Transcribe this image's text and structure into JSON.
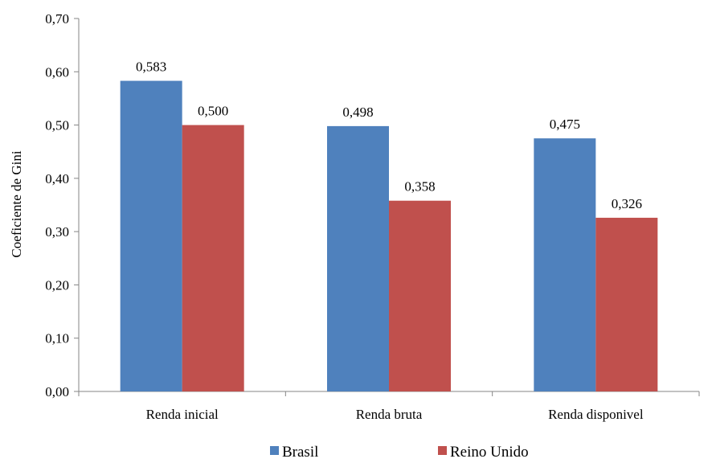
{
  "chart_data": {
    "type": "bar",
    "categories": [
      "Renda inicial",
      "Renda bruta",
      "Renda disponivel"
    ],
    "series": [
      {
        "name": "Brasil",
        "values": [
          0.583,
          0.498,
          0.475
        ],
        "labels": [
          "0,583",
          "0,498",
          "0,475"
        ],
        "color": "#4F81BD"
      },
      {
        "name": "Reino Unido",
        "values": [
          0.5,
          0.358,
          0.326
        ],
        "labels": [
          "0,500",
          "0,358",
          "0,326"
        ],
        "color": "#C0504D"
      }
    ],
    "ylabel": "Coeficiente de Gini",
    "ylim": [
      0,
      0.7
    ],
    "yticks": [
      0,
      0.1,
      0.2,
      0.3,
      0.4,
      0.5,
      0.6,
      0.7
    ],
    "ytick_labels": [
      "0,00",
      "0,10",
      "0,20",
      "0,30",
      "0,40",
      "0,50",
      "0,60",
      "0,70"
    ],
    "grid": false,
    "legend_position": "bottom"
  }
}
